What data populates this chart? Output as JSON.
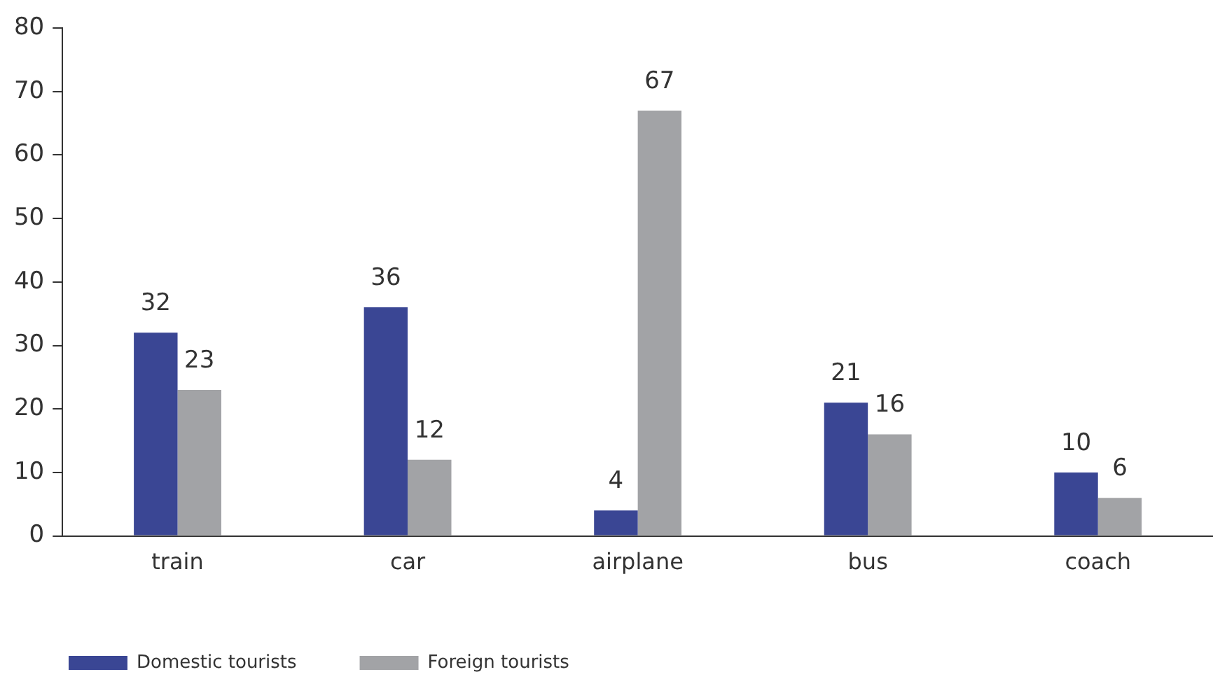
{
  "chart_data": {
    "type": "bar",
    "categories": [
      "train",
      "car",
      "airplane",
      "bus",
      "coach"
    ],
    "series": [
      {
        "name": "Domestic tourists",
        "color": "#3a4694",
        "values": [
          32,
          36,
          4,
          21,
          10
        ]
      },
      {
        "name": "Foreign tourists",
        "color": "#a2a3a6",
        "values": [
          23,
          12,
          67,
          16,
          6
        ]
      }
    ],
    "ylim": [
      0,
      80
    ],
    "yticks": [
      0,
      10,
      20,
      30,
      40,
      50,
      60,
      70,
      80
    ],
    "grid": false,
    "legend": "bottom left",
    "data_labels": true
  }
}
